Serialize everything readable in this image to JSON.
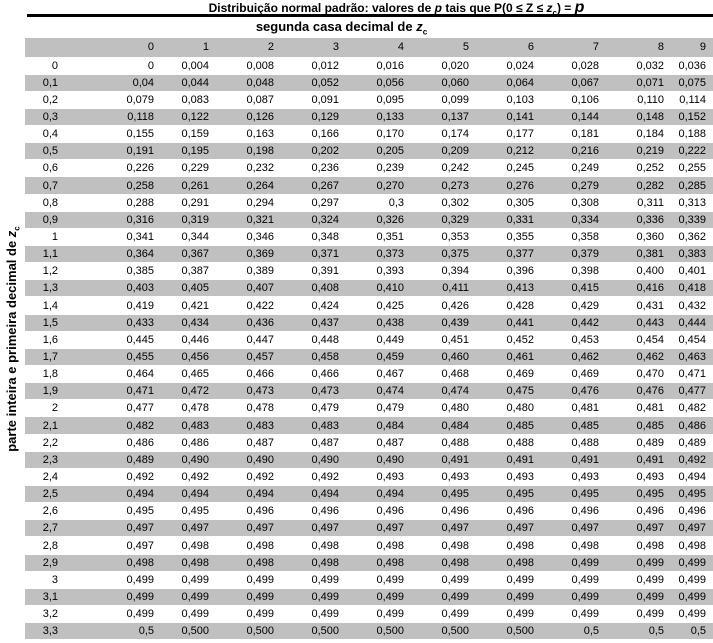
{
  "title": {
    "part1": "Distribuição normal padrão: valores de ",
    "p1": "p",
    "part2": " tais que P(0 ≤ Z ≤ ",
    "z": "z",
    "z_sub": "c",
    "part3": ") = ",
    "p2": "p"
  },
  "subtitle": {
    "text": "segunda casa decimal de ",
    "z": "z",
    "z_sub": "c"
  },
  "side_label": {
    "text": "parte inteira e primeira decimal de ",
    "z": "z",
    "z_sub": "c"
  },
  "colors": {
    "stripe_gray": "#c0c0c0",
    "text": "#000000",
    "background": "#ffffff"
  },
  "chart_data": {
    "type": "table",
    "columns": [
      "0",
      "1",
      "2",
      "3",
      "4",
      "5",
      "6",
      "7",
      "8",
      "9"
    ],
    "rows": [
      {
        "z": "0",
        "values": [
          "0",
          "0,004",
          "0,008",
          "0,012",
          "0,016",
          "0,020",
          "0,024",
          "0,028",
          "0,032",
          "0,036"
        ]
      },
      {
        "z": "0,1",
        "values": [
          "0,04",
          "0,044",
          "0,048",
          "0,052",
          "0,056",
          "0,060",
          "0,064",
          "0,067",
          "0,071",
          "0,075"
        ]
      },
      {
        "z": "0,2",
        "values": [
          "0,079",
          "0,083",
          "0,087",
          "0,091",
          "0,095",
          "0,099",
          "0,103",
          "0,106",
          "0,110",
          "0,114"
        ]
      },
      {
        "z": "0,3",
        "values": [
          "0,118",
          "0,122",
          "0,126",
          "0,129",
          "0,133",
          "0,137",
          "0,141",
          "0,144",
          "0,148",
          "0,152"
        ]
      },
      {
        "z": "0,4",
        "values": [
          "0,155",
          "0,159",
          "0,163",
          "0,166",
          "0,170",
          "0,174",
          "0,177",
          "0,181",
          "0,184",
          "0,188"
        ]
      },
      {
        "z": "0,5",
        "values": [
          "0,191",
          "0,195",
          "0,198",
          "0,202",
          "0,205",
          "0,209",
          "0,212",
          "0,216",
          "0,219",
          "0,222"
        ]
      },
      {
        "z": "0,6",
        "values": [
          "0,226",
          "0,229",
          "0,232",
          "0,236",
          "0,239",
          "0,242",
          "0,245",
          "0,249",
          "0,252",
          "0,255"
        ]
      },
      {
        "z": "0,7",
        "values": [
          "0,258",
          "0,261",
          "0,264",
          "0,267",
          "0,270",
          "0,273",
          "0,276",
          "0,279",
          "0,282",
          "0,285"
        ]
      },
      {
        "z": "0,8",
        "values": [
          "0,288",
          "0,291",
          "0,294",
          "0,297",
          "0,3",
          "0,302",
          "0,305",
          "0,308",
          "0,311",
          "0,313"
        ]
      },
      {
        "z": "0,9",
        "values": [
          "0,316",
          "0,319",
          "0,321",
          "0,324",
          "0,326",
          "0,329",
          "0,331",
          "0,334",
          "0,336",
          "0,339"
        ]
      },
      {
        "z": "1",
        "values": [
          "0,341",
          "0,344",
          "0,346",
          "0,348",
          "0,351",
          "0,353",
          "0,355",
          "0,358",
          "0,360",
          "0,362"
        ]
      },
      {
        "z": "1,1",
        "values": [
          "0,364",
          "0,367",
          "0,369",
          "0,371",
          "0,373",
          "0,375",
          "0,377",
          "0,379",
          "0,381",
          "0,383"
        ]
      },
      {
        "z": "1,2",
        "values": [
          "0,385",
          "0,387",
          "0,389",
          "0,391",
          "0,393",
          "0,394",
          "0,396",
          "0,398",
          "0,400",
          "0,401"
        ]
      },
      {
        "z": "1,3",
        "values": [
          "0,403",
          "0,405",
          "0,407",
          "0,408",
          "0,410",
          "0,411",
          "0,413",
          "0,415",
          "0,416",
          "0,418"
        ]
      },
      {
        "z": "1,4",
        "values": [
          "0,419",
          "0,421",
          "0,422",
          "0,424",
          "0,425",
          "0,426",
          "0,428",
          "0,429",
          "0,431",
          "0,432"
        ]
      },
      {
        "z": "1,5",
        "values": [
          "0,433",
          "0,434",
          "0,436",
          "0,437",
          "0,438",
          "0,439",
          "0,441",
          "0,442",
          "0,443",
          "0,444"
        ]
      },
      {
        "z": "1,6",
        "values": [
          "0,445",
          "0,446",
          "0,447",
          "0,448",
          "0,449",
          "0,451",
          "0,452",
          "0,453",
          "0,454",
          "0,454"
        ]
      },
      {
        "z": "1,7",
        "values": [
          "0,455",
          "0,456",
          "0,457",
          "0,458",
          "0,459",
          "0,460",
          "0,461",
          "0,462",
          "0,462",
          "0,463"
        ]
      },
      {
        "z": "1,8",
        "values": [
          "0,464",
          "0,465",
          "0,466",
          "0,466",
          "0,467",
          "0,468",
          "0,469",
          "0,469",
          "0,470",
          "0,471"
        ]
      },
      {
        "z": "1,9",
        "values": [
          "0,471",
          "0,472",
          "0,473",
          "0,473",
          "0,474",
          "0,474",
          "0,475",
          "0,476",
          "0,476",
          "0,477"
        ]
      },
      {
        "z": "2",
        "values": [
          "0,477",
          "0,478",
          "0,478",
          "0,479",
          "0,479",
          "0,480",
          "0,480",
          "0,481",
          "0,481",
          "0,482"
        ]
      },
      {
        "z": "2,1",
        "values": [
          "0,482",
          "0,483",
          "0,483",
          "0,483",
          "0,484",
          "0,484",
          "0,485",
          "0,485",
          "0,485",
          "0,486"
        ]
      },
      {
        "z": "2,2",
        "values": [
          "0,486",
          "0,486",
          "0,487",
          "0,487",
          "0,487",
          "0,488",
          "0,488",
          "0,488",
          "0,489",
          "0,489"
        ]
      },
      {
        "z": "2,3",
        "values": [
          "0,489",
          "0,490",
          "0,490",
          "0,490",
          "0,490",
          "0,491",
          "0,491",
          "0,491",
          "0,491",
          "0,492"
        ]
      },
      {
        "z": "2,4",
        "values": [
          "0,492",
          "0,492",
          "0,492",
          "0,492",
          "0,493",
          "0,493",
          "0,493",
          "0,493",
          "0,493",
          "0,494"
        ]
      },
      {
        "z": "2,5",
        "values": [
          "0,494",
          "0,494",
          "0,494",
          "0,494",
          "0,494",
          "0,495",
          "0,495",
          "0,495",
          "0,495",
          "0,495"
        ]
      },
      {
        "z": "2,6",
        "values": [
          "0,495",
          "0,495",
          "0,496",
          "0,496",
          "0,496",
          "0,496",
          "0,496",
          "0,496",
          "0,496",
          "0,496"
        ]
      },
      {
        "z": "2,7",
        "values": [
          "0,497",
          "0,497",
          "0,497",
          "0,497",
          "0,497",
          "0,497",
          "0,497",
          "0,497",
          "0,497",
          "0,497"
        ]
      },
      {
        "z": "2,8",
        "values": [
          "0,497",
          "0,498",
          "0,498",
          "0,498",
          "0,498",
          "0,498",
          "0,498",
          "0,498",
          "0,498",
          "0,498"
        ]
      },
      {
        "z": "2,9",
        "values": [
          "0,498",
          "0,498",
          "0,498",
          "0,498",
          "0,498",
          "0,498",
          "0,498",
          "0,499",
          "0,499",
          "0,499"
        ]
      },
      {
        "z": "3",
        "values": [
          "0,499",
          "0,499",
          "0,499",
          "0,499",
          "0,499",
          "0,499",
          "0,499",
          "0,499",
          "0,499",
          "0,499"
        ]
      },
      {
        "z": "3,1",
        "values": [
          "0,499",
          "0,499",
          "0,499",
          "0,499",
          "0,499",
          "0,499",
          "0,499",
          "0,499",
          "0,499",
          "0,499"
        ]
      },
      {
        "z": "3,2",
        "values": [
          "0,499",
          "0,499",
          "0,499",
          "0,499",
          "0,499",
          "0,499",
          "0,499",
          "0,499",
          "0,499",
          "0,499"
        ]
      },
      {
        "z": "3,3",
        "values": [
          "0,5",
          "0,500",
          "0,500",
          "0,500",
          "0,500",
          "0,500",
          "0,500",
          "0,5",
          "0,5",
          "0,5"
        ]
      }
    ]
  }
}
